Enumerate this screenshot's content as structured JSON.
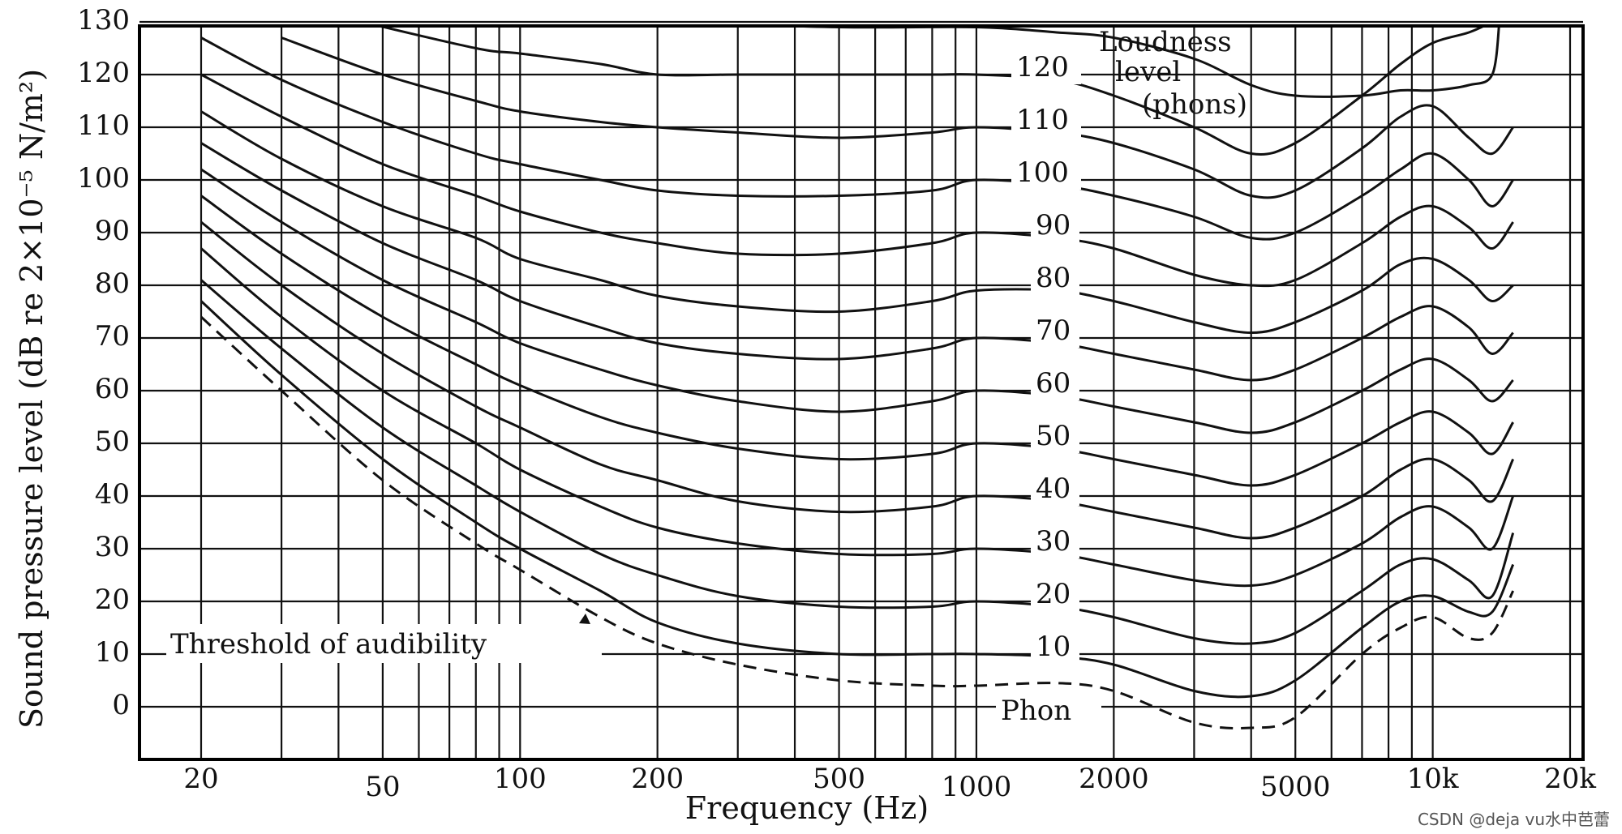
{
  "chart_data": {
    "type": "line",
    "title": "",
    "xlabel": "Frequency (Hz)",
    "ylabel": "Sound pressure level (dB re 2×10⁻⁵ N/m²)",
    "x_scale": "log",
    "xlim": [
      20,
      20000
    ],
    "ylim": [
      -10,
      130
    ],
    "grid": true,
    "x_ticks": [
      {
        "value": 20,
        "label": "20"
      },
      {
        "value": 50,
        "label": "50"
      },
      {
        "value": 100,
        "label": "100"
      },
      {
        "value": 200,
        "label": "200"
      },
      {
        "value": 500,
        "label": "500"
      },
      {
        "value": 1000,
        "label": "1000"
      },
      {
        "value": 2000,
        "label": "2000"
      },
      {
        "value": 5000,
        "label": "5000"
      },
      {
        "value": 10000,
        "label": "10k"
      },
      {
        "value": 20000,
        "label": "20k"
      }
    ],
    "y_ticks": [
      {
        "value": 130,
        "label": "130"
      },
      {
        "value": 120,
        "label": "120"
      },
      {
        "value": 110,
        "label": "110"
      },
      {
        "value": 100,
        "label": "100"
      },
      {
        "value": 90,
        "label": "90"
      },
      {
        "value": 80,
        "label": "80"
      },
      {
        "value": 70,
        "label": "70"
      },
      {
        "value": 60,
        "label": "60"
      },
      {
        "value": 50,
        "label": "50"
      },
      {
        "value": 40,
        "label": "40"
      },
      {
        "value": 30,
        "label": "30"
      },
      {
        "value": 20,
        "label": "20"
      },
      {
        "value": 10,
        "label": "10"
      },
      {
        "value": 0,
        "label": "0"
      }
    ],
    "legend_title": [
      "Loudness",
      "level",
      "(phons)"
    ],
    "series": [
      {
        "name": "Threshold of audibility",
        "style": "dashed",
        "x": [
          20,
          30,
          50,
          80,
          100,
          150,
          200,
          300,
          500,
          800,
          1000,
          1500,
          2000,
          3000,
          4000,
          5000,
          7000,
          8500,
          10000,
          12000,
          13500,
          15000
        ],
        "y": [
          74,
          60,
          43,
          31,
          26,
          17,
          12,
          8,
          5,
          4,
          4,
          4.5,
          3,
          -3,
          -4,
          -2,
          10,
          15,
          17,
          13,
          14,
          22
        ]
      },
      {
        "name": "Phon",
        "label": "Phon",
        "x": [
          20,
          30,
          50,
          80,
          100,
          150,
          200,
          300,
          500,
          800,
          1000,
          1500,
          2000,
          3000,
          4000,
          5000,
          7000,
          8500,
          10000,
          12000,
          13500,
          15000
        ],
        "y": [
          77,
          63,
          47,
          35,
          30,
          22,
          16,
          12,
          10,
          10,
          10,
          9.5,
          8,
          3,
          2,
          5,
          15,
          20,
          21,
          18,
          18,
          27
        ]
      },
      {
        "name": "10",
        "label": "10",
        "x": [
          20,
          30,
          50,
          80,
          100,
          150,
          200,
          300,
          500,
          800,
          1000,
          1500,
          2000,
          3000,
          4000,
          5000,
          7000,
          8500,
          10000,
          12000,
          13500,
          15000
        ],
        "y": [
          81,
          68,
          53,
          42,
          37,
          29,
          25,
          21,
          19,
          19,
          20,
          19,
          17,
          13,
          12,
          14,
          22,
          27,
          28,
          24,
          21,
          33
        ]
      },
      {
        "name": "20",
        "label": "20",
        "x": [
          20,
          30,
          50,
          80,
          100,
          150,
          200,
          300,
          500,
          800,
          1000,
          1500,
          2000,
          3000,
          4000,
          5000,
          7000,
          8500,
          10000,
          12000,
          13500,
          15000
        ],
        "y": [
          87,
          74,
          60,
          50,
          45,
          38,
          34,
          31,
          29,
          29,
          30,
          29,
          27,
          24,
          23,
          25,
          31,
          36,
          38,
          34,
          30,
          40
        ]
      },
      {
        "name": "30",
        "label": "30",
        "x": [
          20,
          30,
          50,
          80,
          100,
          150,
          200,
          300,
          500,
          800,
          1000,
          1500,
          2000,
          3000,
          4000,
          5000,
          7000,
          8500,
          10000,
          12000,
          13500,
          15000
        ],
        "y": [
          92,
          80,
          67,
          57,
          53,
          46,
          43,
          39,
          37,
          38,
          40,
          39,
          37,
          34,
          32,
          34,
          40,
          45,
          47,
          43,
          39,
          47
        ]
      },
      {
        "name": "40",
        "label": "40",
        "x": [
          20,
          30,
          50,
          80,
          100,
          150,
          200,
          300,
          500,
          800,
          1000,
          1500,
          2000,
          3000,
          4000,
          5000,
          7000,
          8500,
          10000,
          12000,
          13500,
          15000
        ],
        "y": [
          97,
          86,
          74,
          65,
          61,
          55,
          52,
          49,
          47,
          48,
          50,
          49,
          47,
          44,
          42,
          44,
          50,
          54,
          56,
          52,
          48,
          54
        ]
      },
      {
        "name": "50",
        "label": "50",
        "x": [
          20,
          30,
          50,
          80,
          100,
          150,
          200,
          300,
          500,
          800,
          1000,
          1500,
          2000,
          3000,
          4000,
          5000,
          7000,
          8500,
          10000,
          12000,
          13500,
          15000
        ],
        "y": [
          102,
          92,
          81,
          73,
          69,
          64,
          61,
          58,
          56,
          58,
          60,
          59,
          57,
          54,
          52,
          54,
          60,
          64,
          66,
          62,
          58,
          62
        ]
      },
      {
        "name": "60",
        "label": "60",
        "x": [
          20,
          30,
          50,
          80,
          100,
          150,
          200,
          300,
          500,
          800,
          1000,
          1500,
          2000,
          3000,
          4000,
          5000,
          7000,
          8500,
          10000,
          12000,
          13500,
          15000
        ],
        "y": [
          107,
          98,
          88,
          81,
          77,
          72,
          69,
          67,
          66,
          68,
          70,
          69,
          67,
          64,
          62,
          64,
          70,
          74,
          76,
          72,
          67,
          71
        ]
      },
      {
        "name": "70",
        "label": "70",
        "x": [
          20,
          30,
          50,
          80,
          100,
          150,
          200,
          300,
          500,
          800,
          1000,
          1500,
          2000,
          3000,
          4000,
          5000,
          7000,
          8500,
          10000,
          12000,
          13500,
          15000
        ],
        "y": [
          113,
          104,
          95,
          89,
          85,
          81,
          78,
          76,
          75,
          77,
          79,
          79,
          77,
          73,
          71,
          73,
          79,
          84,
          85,
          81,
          77,
          80
        ]
      },
      {
        "name": "80",
        "label": "80",
        "x": [
          20,
          30,
          50,
          80,
          100,
          150,
          200,
          300,
          500,
          800,
          1000,
          1500,
          2000,
          3000,
          4000,
          5000,
          7000,
          8500,
          10000,
          12000,
          13500,
          15000
        ],
        "y": [
          120,
          112,
          103,
          97,
          94,
          90,
          88,
          86,
          86,
          88,
          90,
          89,
          87,
          82,
          80,
          81,
          88,
          93,
          95,
          91,
          87,
          92
        ]
      },
      {
        "name": "90",
        "label": "90",
        "x": [
          20,
          30,
          50,
          80,
          100,
          150,
          200,
          300,
          500,
          800,
          1000,
          1500,
          2000,
          3000,
          4000,
          5000,
          7000,
          8500,
          10000,
          12000,
          13500,
          15000
        ],
        "y": [
          127,
          119,
          111,
          105,
          103,
          100,
          98,
          97,
          97,
          98,
          100,
          99,
          97,
          93,
          89,
          90,
          97,
          102,
          105,
          100,
          95,
          100
        ]
      },
      {
        "name": "100",
        "label": "100",
        "x": [
          30,
          50,
          80,
          100,
          150,
          200,
          300,
          500,
          800,
          1000,
          1500,
          2000,
          3000,
          4000,
          5000,
          7000,
          8500,
          10000,
          12000,
          13500,
          15000
        ],
        "y": [
          127,
          120,
          115,
          113,
          111,
          110,
          109,
          108,
          109,
          110,
          109,
          107,
          102,
          97,
          98,
          106,
          112,
          114,
          108,
          105,
          110
        ]
      },
      {
        "name": "110",
        "label": "110",
        "x": [
          45,
          80,
          100,
          150,
          200,
          300,
          500,
          800,
          1000,
          1500,
          2000,
          3000,
          4000,
          5000,
          7000,
          8500,
          10000,
          12000,
          13500
        ],
        "y": [
          130,
          125,
          124,
          122,
          120,
          120,
          120,
          120,
          120,
          119,
          116,
          110,
          105,
          107,
          116,
          122,
          126,
          128,
          130
        ]
      },
      {
        "name": "120",
        "label": "120",
        "x": [
          200,
          500,
          1000,
          1500,
          2000,
          3000,
          4000,
          5000,
          7000,
          8500,
          10000,
          12000,
          13500,
          14000
        ],
        "y": [
          130,
          129,
          129,
          128,
          127,
          123,
          118,
          116,
          116,
          117,
          117,
          118,
          120,
          130
        ]
      }
    ],
    "annotations": [
      "Threshold of audibility",
      "Phon"
    ]
  },
  "watermark": "CSDN @deja vu水中芭蕾"
}
